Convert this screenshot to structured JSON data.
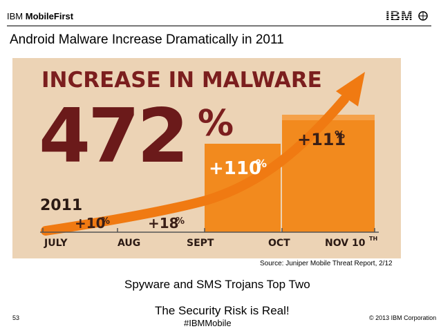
{
  "header": {
    "brand_light": "IBM ",
    "brand_bold": "MobileFirst",
    "logo_text": "IBM",
    "slide_title": "Android Malware Increase Dramatically in 2011"
  },
  "hero": {
    "headline": "INCREASE IN MALWARE",
    "big_number": "472",
    "big_percent": "%",
    "year": "2011",
    "step_labels": [
      {
        "value": "+10",
        "unit": "%"
      },
      {
        "value": "+18",
        "unit": "%"
      },
      {
        "value": "+110",
        "unit": "%"
      },
      {
        "value": "+111",
        "unit": "%"
      }
    ],
    "months": [
      "JULY",
      "AUG",
      "SEPT",
      "OCT",
      "NOV 10"
    ],
    "month_suffix": "TH"
  },
  "source_text": "Source: Juniper Mobile Threat Report, 2/12",
  "subhead": "Spyware and SMS Trojans Top Two",
  "tagline": "The Security Risk is Real!",
  "hashtag": "#IBMMobile",
  "footer": {
    "page_number": "53",
    "copyright": "© 2013 IBM Corporation"
  },
  "colors": {
    "hero_bg": "#ecd3b5",
    "maroon": "#7b1e1e",
    "orange": "#f28a1e",
    "bar_dark": "#e07511"
  }
}
